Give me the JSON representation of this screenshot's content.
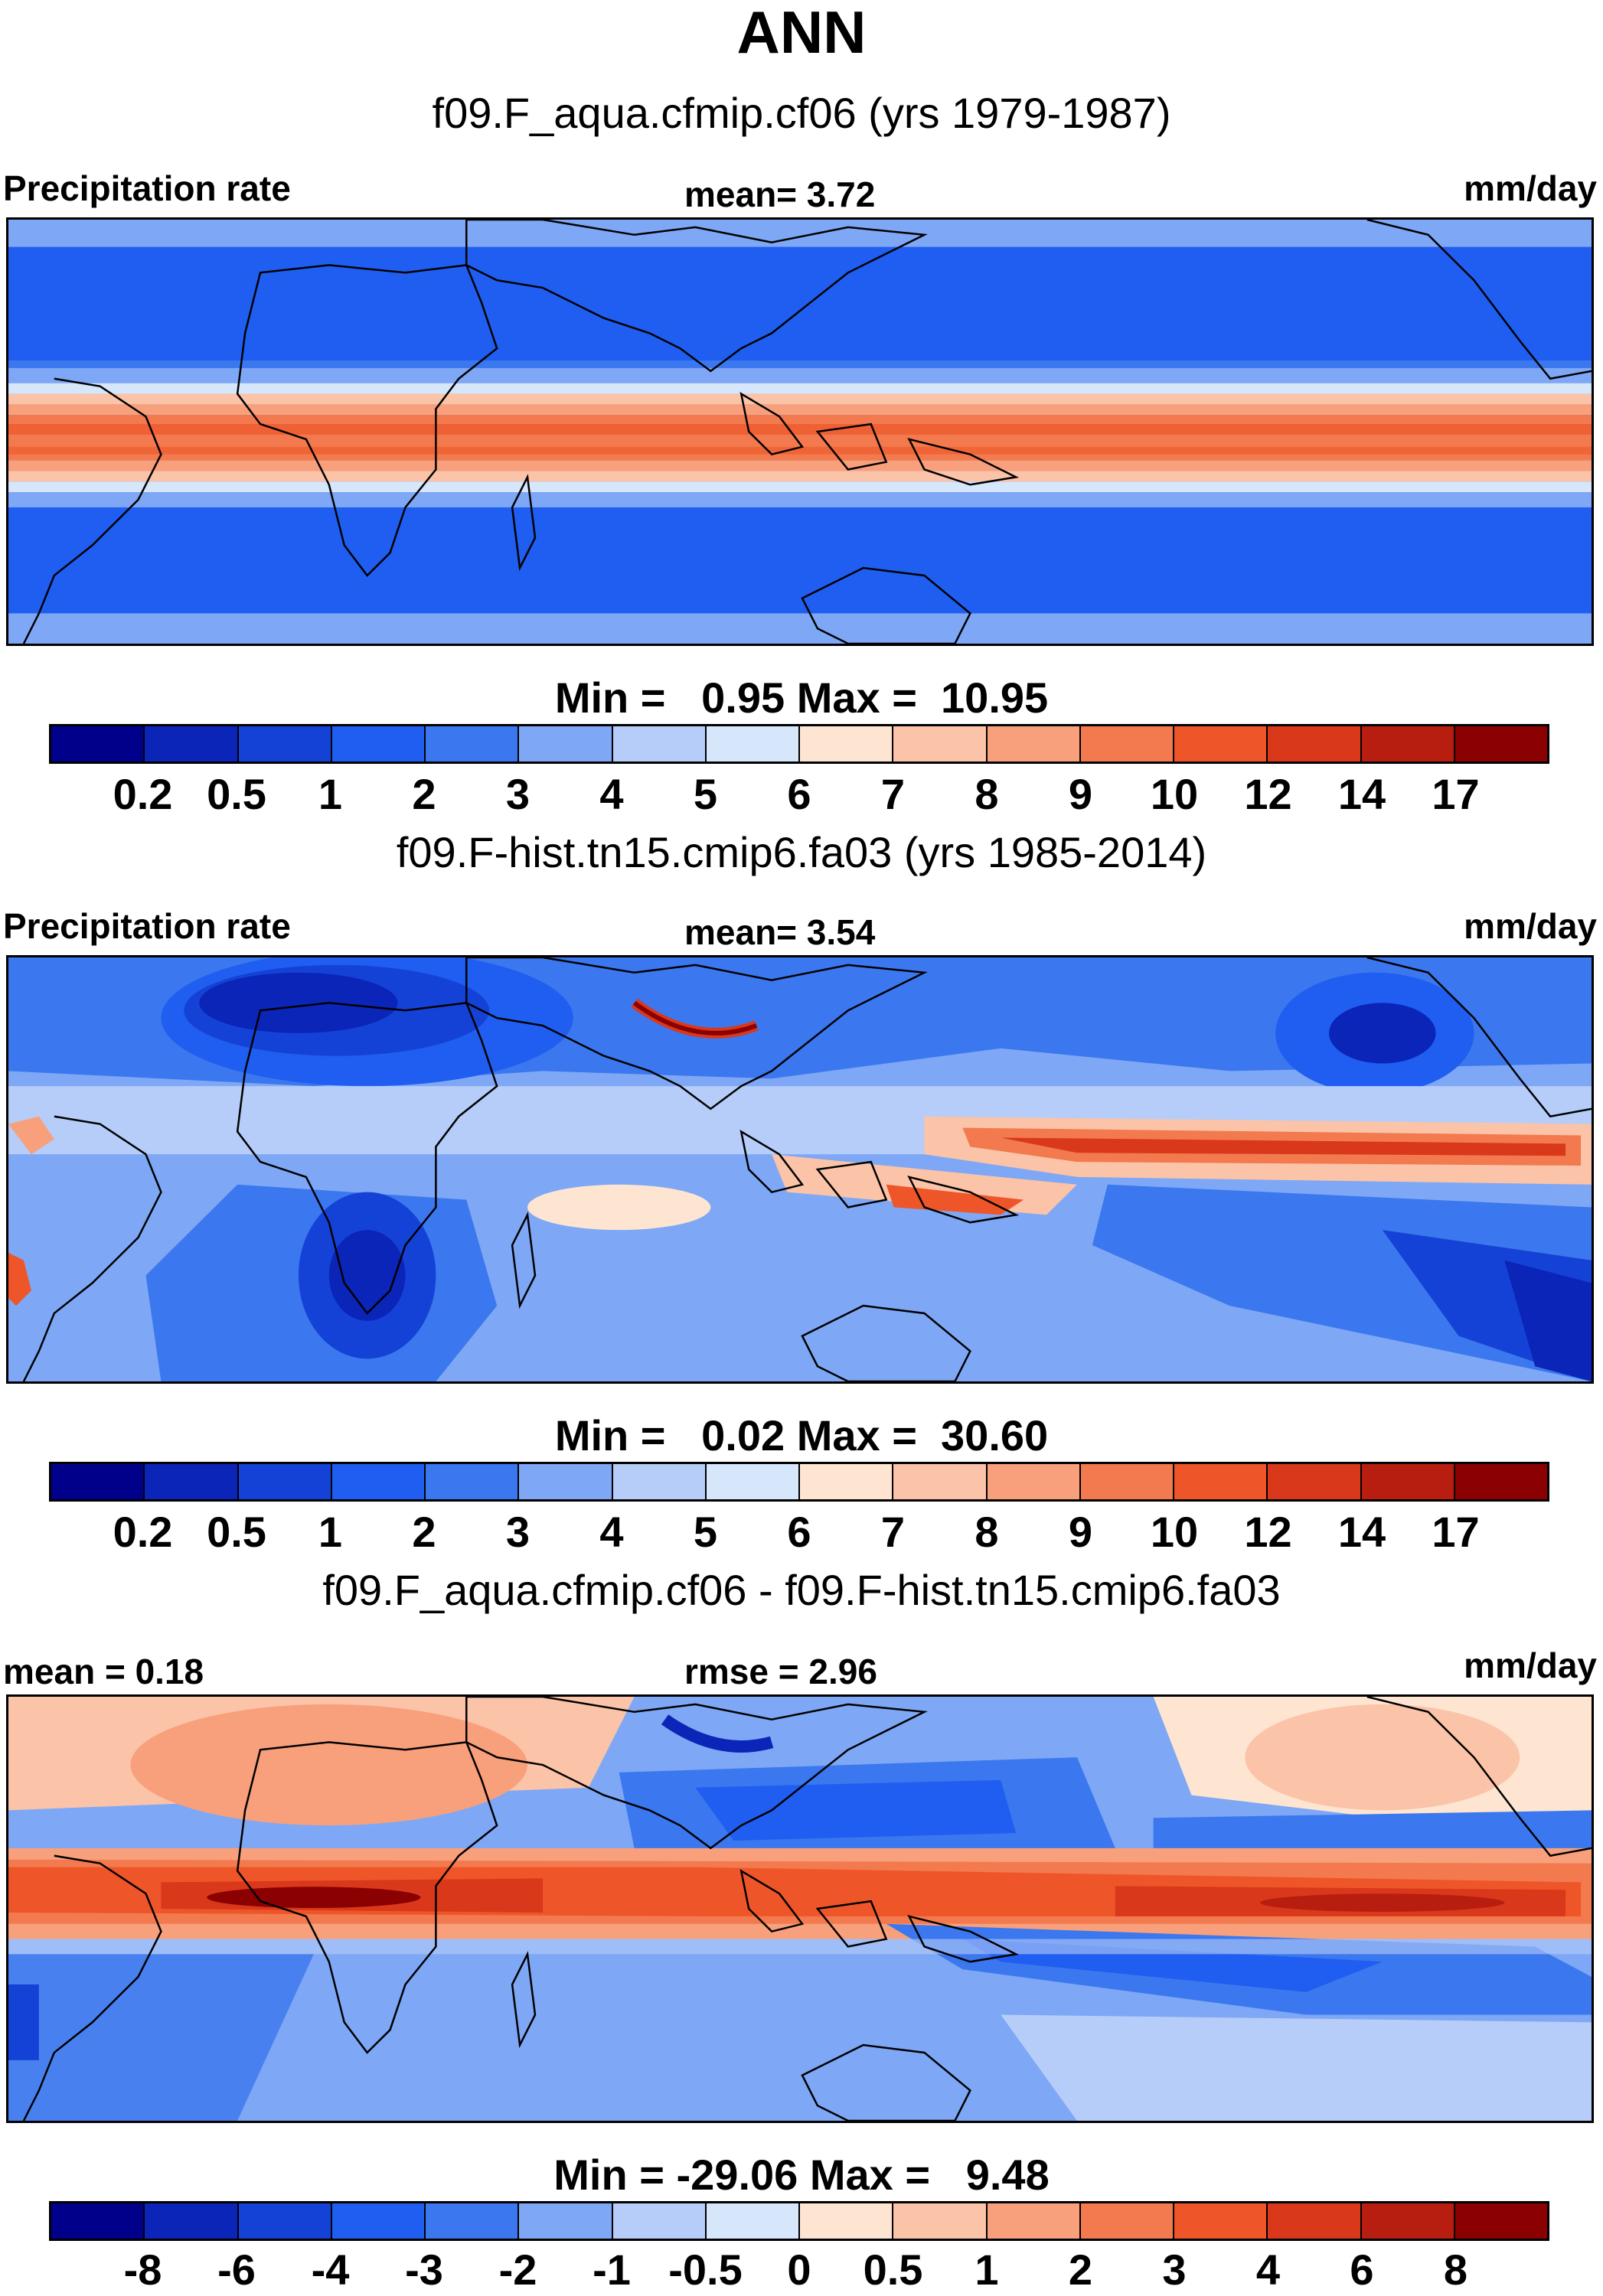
{
  "season": "ANN",
  "colors": {
    "abs": [
      "#00008b",
      "#0a25b8",
      "#1542d6",
      "#1f5ef0",
      "#3b77ee",
      "#7ea7f5",
      "#b5cdf8",
      "#d6e6fb",
      "#fde5d2",
      "#fbc3a8",
      "#f8a07c",
      "#f27a4e",
      "#ee5629",
      "#d9381b",
      "#b81e0f",
      "#8b0000"
    ],
    "diff": [
      "#00008b",
      "#0a25b8",
      "#1542d6",
      "#1f5ef0",
      "#3b77ee",
      "#7ea7f5",
      "#b5cdf8",
      "#d6e6fb",
      "#fde5d2",
      "#fbc3a8",
      "#f8a07c",
      "#f27a4e",
      "#ee5629",
      "#d9381b",
      "#b81e0f",
      "#8b0000"
    ]
  },
  "panels": [
    {
      "case": "f09.F_aqua.cfmip.cf06 (yrs 1979-1987)",
      "left": "Precipitation rate",
      "center": "mean=   3.72",
      "right": "mm/day",
      "minmax": "Min =   0.95 Max =  10.95",
      "cmap": "abs",
      "levels": [
        "0.2",
        "0.5",
        "1",
        "2",
        "3",
        "4",
        "5",
        "6",
        "7",
        "8",
        "9",
        "10",
        "12",
        "14",
        "17"
      ]
    },
    {
      "case": "f09.F-hist.tn15.cmip6.fa03 (yrs 1985-2014)",
      "left": "Precipitation rate",
      "center": "mean=   3.54",
      "right": "mm/day",
      "minmax": "Min =   0.02 Max =  30.60",
      "cmap": "abs",
      "levels": [
        "0.2",
        "0.5",
        "1",
        "2",
        "3",
        "4",
        "5",
        "6",
        "7",
        "8",
        "9",
        "10",
        "12",
        "14",
        "17"
      ]
    },
    {
      "case": "f09.F_aqua.cfmip.cf06 - f09.F-hist.tn15.cmip6.fa03",
      "left": "mean =   0.18",
      "center": "rmse =   2.96",
      "right": "mm/day",
      "minmax": "Min = -29.06 Max =   9.48",
      "cmap": "diff",
      "levels": [
        "-8",
        "-6",
        "-4",
        "-3",
        "-2",
        "-1",
        "-0.5",
        "0",
        "0.5",
        "1",
        "2",
        "3",
        "4",
        "6",
        "8"
      ]
    }
  ]
}
